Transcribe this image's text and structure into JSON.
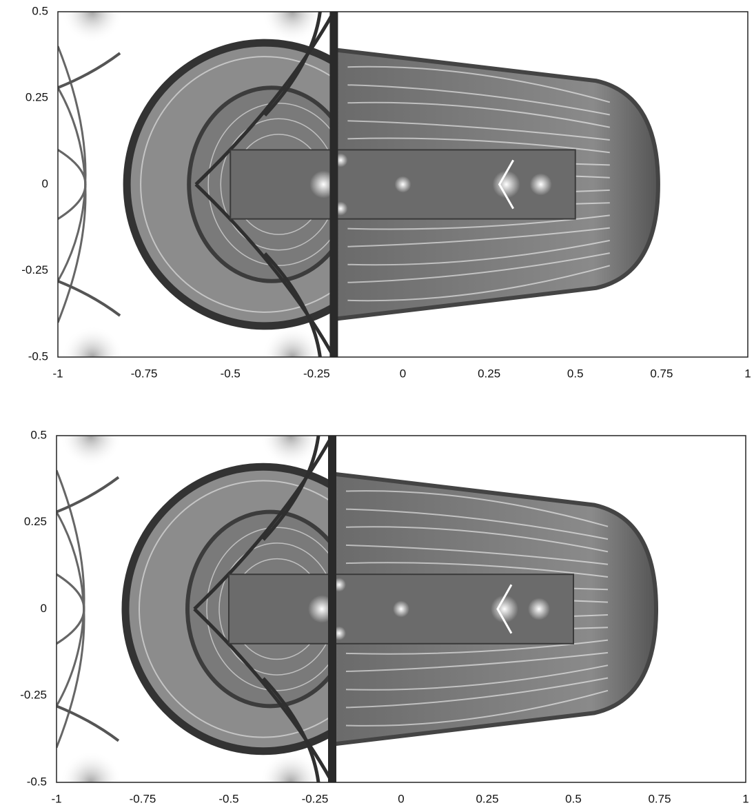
{
  "chart_data": [
    {
      "type": "image",
      "xlim": [
        -1,
        1
      ],
      "ylim": [
        -0.5,
        0.5
      ],
      "xticks": [
        -1,
        -0.75,
        -0.5,
        -0.25,
        0,
        0.25,
        0.5,
        0.75,
        1
      ],
      "yticks": [
        -0.5,
        -0.25,
        0,
        0.25,
        0.5
      ]
    },
    {
      "type": "image",
      "xlim": [
        -1,
        1
      ],
      "ylim": [
        -0.5,
        0.5
      ],
      "xticks": [
        -1,
        -0.75,
        -0.5,
        -0.25,
        0,
        0.25,
        0.5,
        0.75,
        1
      ],
      "yticks": [
        -0.5,
        -0.25,
        0,
        0.25,
        0.5
      ]
    }
  ]
}
